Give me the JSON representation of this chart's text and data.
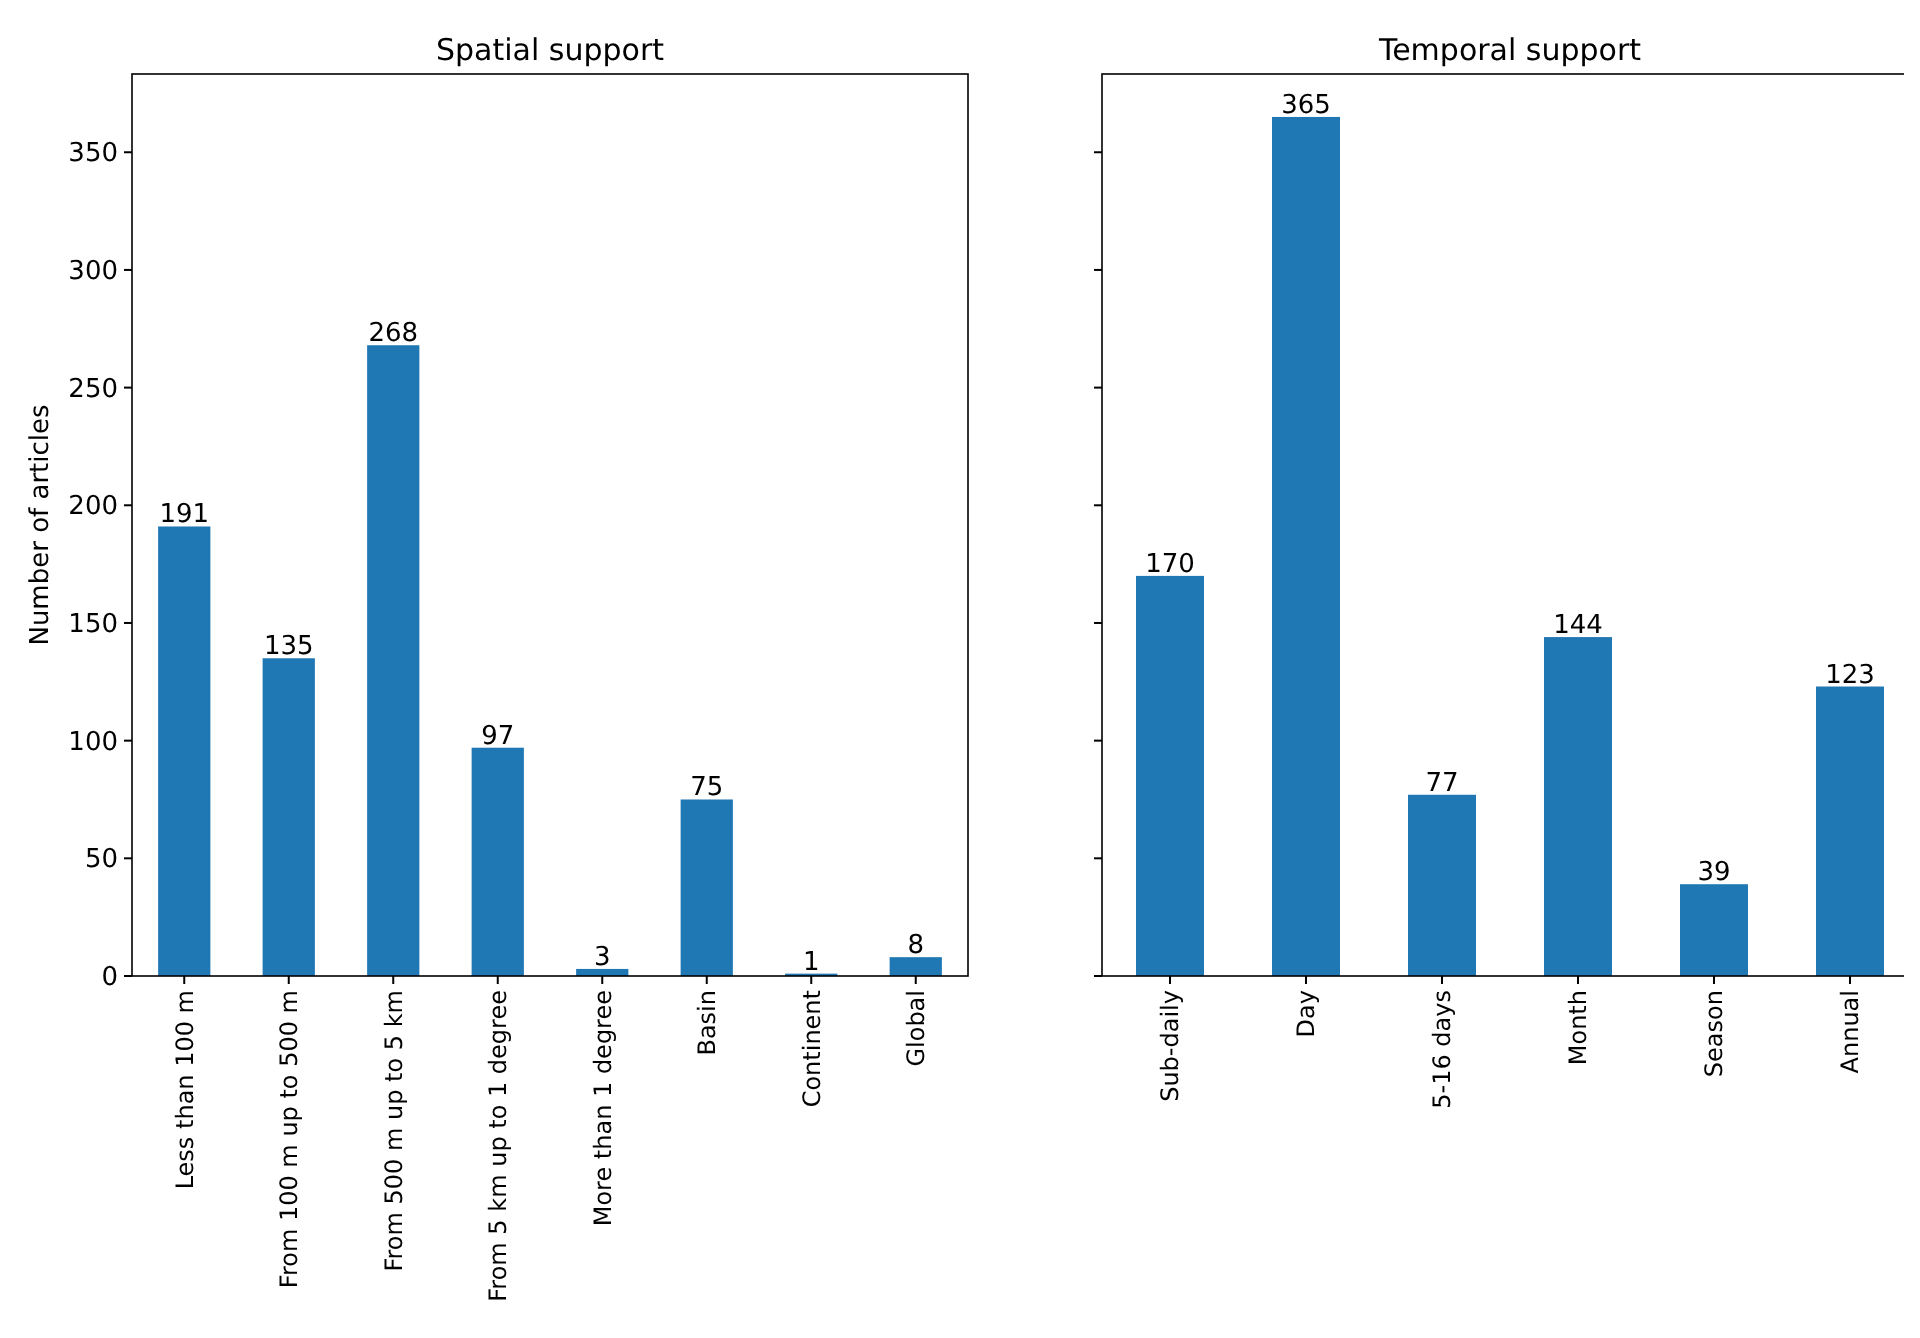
{
  "chart_data": [
    {
      "type": "bar",
      "title": "Spatial support",
      "ylabel": "Number of articles",
      "categories": [
        "Less than 100 m",
        "From 100 m up to 500 m",
        "From 500 m up to 5 km",
        "From 5 km up to 1 degree",
        "More than 1 degree",
        "Basin",
        "Continent",
        "Global"
      ],
      "values": [
        191,
        135,
        268,
        97,
        3,
        75,
        1,
        8
      ],
      "color": "#1f77b4",
      "ylim": [
        0,
        383.25
      ],
      "yticks": [
        0,
        50,
        100,
        150,
        200,
        250,
        300,
        350
      ],
      "data_labels": true
    },
    {
      "type": "bar",
      "title": "Temporal support",
      "categories": [
        "Sub-daily",
        "Day",
        "5-16 days",
        "Month",
        "Season",
        "Annual"
      ],
      "values": [
        170,
        365,
        77,
        144,
        39,
        123
      ],
      "color": "#1f77b4",
      "ylim": [
        0,
        383.25
      ],
      "yticks": [
        0,
        50,
        100,
        150,
        200,
        250,
        300,
        350
      ],
      "data_labels": true,
      "tick_labels": "x"
    }
  ]
}
